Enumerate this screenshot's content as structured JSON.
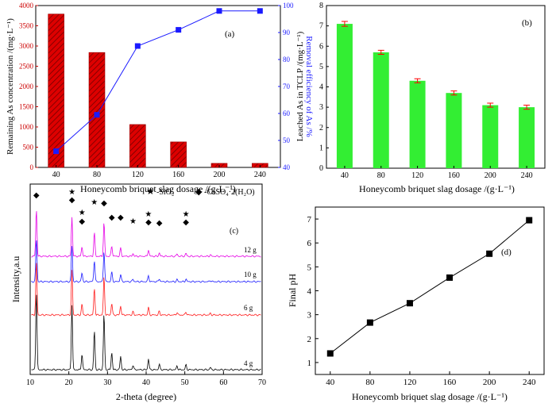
{
  "chart_data": [
    {
      "panel": "(a)",
      "type": "bar",
      "categories": [
        "40",
        "80",
        "120",
        "160",
        "200",
        "240"
      ],
      "xlabel": "Honeycomb briquet slag dosage /(g·L⁻¹)",
      "ylabel_left": "Remaining As concentration /(mg·L⁻¹)",
      "ylabel_right": "Removal efficiency of As /%",
      "ylim_left": [
        0,
        4000
      ],
      "yticks_left": [
        "0",
        "500",
        "1000",
        "1500",
        "2000",
        "2500",
        "3000",
        "3500",
        "4000"
      ],
      "ylim_right": [
        40,
        100
      ],
      "yticks_right": [
        "40",
        "50",
        "60",
        "70",
        "80",
        "90",
        "100"
      ],
      "series": [
        {
          "values": [
            3790,
            2840,
            1060,
            630,
            100,
            100
          ],
          "axis": "left",
          "kind": "bar",
          "color": "#cc0000",
          "pattern": "hatched"
        },
        {
          "values": [
            46,
            59.5,
            85,
            91,
            98,
            98
          ],
          "axis": "right",
          "kind": "line",
          "color": "#1a1aff",
          "marker": "square"
        }
      ],
      "colors": {
        "left_axis": "#cc0000",
        "right_axis": "#1a1aff"
      }
    },
    {
      "panel": "(b)",
      "type": "bar",
      "categories": [
        "40",
        "80",
        "120",
        "160",
        "200",
        "240"
      ],
      "values": [
        7.1,
        5.7,
        4.3,
        3.7,
        3.1,
        3.0
      ],
      "errors": [
        0.12,
        0.1,
        0.1,
        0.1,
        0.1,
        0.1
      ],
      "xlabel": "Honeycomb briquet slag dosage /(g·L⁻¹)",
      "ylabel": "Leached As in TCLP /(mg·L⁻¹)",
      "ylim": [
        0,
        8
      ],
      "yticks": [
        "0",
        "1",
        "2",
        "3",
        "4",
        "5",
        "6",
        "7",
        "8"
      ],
      "color": "#33ee33",
      "error_color": "#ff0000"
    },
    {
      "panel": "(c)",
      "type": "line",
      "xlabel": "2-theta (degree)",
      "ylabel": "Intensity,a.u",
      "xlim": [
        10,
        70
      ],
      "xticks": [
        "10",
        "20",
        "30",
        "40",
        "50",
        "60",
        "70"
      ],
      "legend": {
        "star": "-SiO₂",
        "diamond": "-CaSO₄·2(H₂O)"
      },
      "series": [
        {
          "name": "12 g",
          "color": "#e600e6"
        },
        {
          "name": "10 g",
          "color": "#1a1aff"
        },
        {
          "name": "6 g",
          "color": "#ff1a1a"
        },
        {
          "name": "4 g",
          "color": "#000000"
        }
      ],
      "peaks": [
        {
          "x": 11.6,
          "h": 1.0,
          "phase": "diamond"
        },
        {
          "x": 20.8,
          "h": 0.82,
          "phase": "star_diamond"
        },
        {
          "x": 23.4,
          "h": 0.2,
          "phase": "star_diamond"
        },
        {
          "x": 26.6,
          "h": 0.5,
          "phase": "star"
        },
        {
          "x": 29.1,
          "h": 0.72,
          "phase": "diamond"
        },
        {
          "x": 31.1,
          "h": 0.22,
          "phase": "diamond"
        },
        {
          "x": 33.4,
          "h": 0.17,
          "phase": "diamond"
        },
        {
          "x": 36.6,
          "h": 0.06,
          "phase": "star"
        },
        {
          "x": 40.6,
          "h": 0.14,
          "phase": "star_diamond"
        },
        {
          "x": 43.4,
          "h": 0.07,
          "phase": "diamond"
        },
        {
          "x": 48.0,
          "h": 0.05,
          "phase": ""
        },
        {
          "x": 50.3,
          "h": 0.06,
          "phase": "star_diamond"
        },
        {
          "x": 56.6,
          "h": 0.03,
          "phase": ""
        }
      ]
    },
    {
      "panel": "(d)",
      "type": "line",
      "x": [
        40,
        80,
        120,
        160,
        200,
        240
      ],
      "y": [
        1.38,
        2.67,
        3.48,
        4.55,
        5.55,
        6.95
      ],
      "xlabel": "Honeycomb briquet slag dosage /(g·L⁻¹)",
      "ylabel": "Final pH",
      "xlim": [
        25,
        255
      ],
      "ylim": [
        0.5,
        7.5
      ],
      "xticks": [
        "40",
        "80",
        "120",
        "160",
        "200",
        "240"
      ],
      "yticks": [
        "1",
        "2",
        "3",
        "4",
        "5",
        "6",
        "7"
      ],
      "color": "#000000",
      "marker": "square"
    }
  ]
}
